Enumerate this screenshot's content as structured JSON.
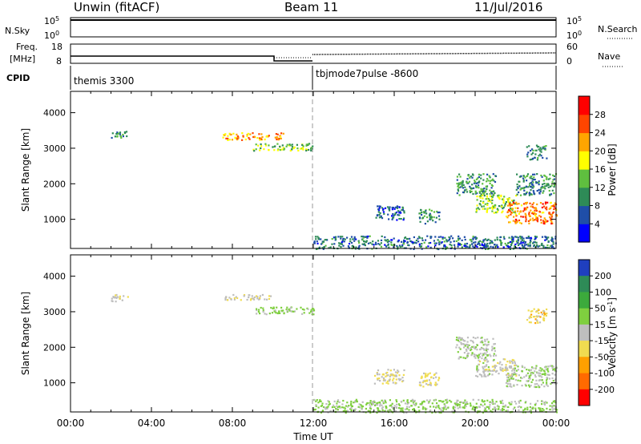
{
  "header": {
    "title": "Unwin (fitACF)",
    "beam": "Beam 11",
    "date": "11/Jul/2016"
  },
  "summary": {
    "nsky_label": "N.Sky",
    "nsky_ticks": [
      "10^5",
      "10^0"
    ],
    "nsearch_label": "N.Search",
    "nsearch_ticks": [
      "10^5",
      "10^0"
    ],
    "freq_label": "Freq.",
    "freq_unit": "[MHz]",
    "freq_ticks": [
      "18",
      "8"
    ],
    "nave_label": "Nave",
    "nave_ticks": [
      "60",
      "0"
    ],
    "cpid_label": "CPID",
    "cpid_modes": [
      {
        "name": "themis 3300",
        "start_hour": 0
      },
      {
        "name": "tbjmode7pulse -8600",
        "start_hour": 12
      }
    ]
  },
  "chart_data": [
    {
      "type": "heatmap",
      "title": "",
      "quantity": "Power",
      "ylabel": "Slant Range [km]",
      "xlabel": "",
      "xlim": [
        0,
        24
      ],
      "ylim": [
        180,
        4600
      ],
      "yticks": [
        "1000",
        "2000",
        "3000",
        "4000"
      ],
      "colorbar": {
        "label": "Power [dB]",
        "ticks": [
          "4",
          "8",
          "12",
          "16",
          "20",
          "24",
          "28"
        ],
        "range": [
          0,
          32
        ],
        "colors": [
          "#0000ff",
          "#1f4ea8",
          "#2e8b57",
          "#5fbf3f",
          "#ffff00",
          "#ffa500",
          "#ff4500",
          "#ff0000"
        ]
      },
      "regions": [
        {
          "x": [
            2.0,
            2.8
          ],
          "y": [
            3300,
            3500
          ],
          "value": 10
        },
        {
          "x": [
            7.5,
            10.5
          ],
          "y": [
            3250,
            3450
          ],
          "value": 22
        },
        {
          "x": [
            9.0,
            12.0
          ],
          "y": [
            2950,
            3150
          ],
          "value": 14
        },
        {
          "x": [
            12.0,
            24.0
          ],
          "y": [
            180,
            550
          ],
          "value": 8
        },
        {
          "x": [
            15.0,
            16.5
          ],
          "y": [
            1000,
            1400
          ],
          "value": 7
        },
        {
          "x": [
            17.2,
            18.2
          ],
          "y": [
            900,
            1300
          ],
          "value": 10
        },
        {
          "x": [
            19.0,
            21.0
          ],
          "y": [
            1700,
            2300
          ],
          "value": 11
        },
        {
          "x": [
            20.0,
            22.0
          ],
          "y": [
            1200,
            1700
          ],
          "value": 15
        },
        {
          "x": [
            21.5,
            24.0
          ],
          "y": [
            900,
            1500
          ],
          "value": 24
        },
        {
          "x": [
            22.0,
            24.0
          ],
          "y": [
            1700,
            2300
          ],
          "value": 10
        },
        {
          "x": [
            22.5,
            23.5
          ],
          "y": [
            2700,
            3100
          ],
          "value": 9
        }
      ]
    },
    {
      "type": "heatmap",
      "title": "",
      "quantity": "Velocity",
      "ylabel": "Slant Range [km]",
      "xlabel": "Time UT",
      "xlim": [
        0,
        24
      ],
      "ylim": [
        180,
        4600
      ],
      "xticks": [
        "00:00",
        "04:00",
        "08:00",
        "12:00",
        "16:00",
        "20:00",
        "00:00"
      ],
      "yticks": [
        "1000",
        "2000",
        "3000",
        "4000"
      ],
      "colorbar": {
        "label": "Velocity [m s^-1]",
        "ticks": [
          "200",
          "100",
          "50",
          "15",
          "-15",
          "-50",
          "-100",
          "-200"
        ],
        "range": [
          250,
          -250
        ],
        "colors": [
          "#1f3fbf",
          "#2e8b57",
          "#3caa3c",
          "#7fcf3f",
          "#bebebe",
          "#f0dc50",
          "#ffa000",
          "#ff6a00",
          "#ff0000"
        ]
      },
      "regions": [
        {
          "x": [
            2.0,
            2.8
          ],
          "y": [
            3300,
            3500
          ],
          "value": 0
        },
        {
          "x": [
            7.5,
            10.0
          ],
          "y": [
            3350,
            3500
          ],
          "value": -30
        },
        {
          "x": [
            9.0,
            12.0
          ],
          "y": [
            2950,
            3150
          ],
          "value": 40
        },
        {
          "x": [
            12.0,
            24.0
          ],
          "y": [
            180,
            550
          ],
          "value": 40
        },
        {
          "x": [
            15.0,
            16.5
          ],
          "y": [
            1000,
            1400
          ],
          "value": -20
        },
        {
          "x": [
            17.2,
            18.2
          ],
          "y": [
            900,
            1300
          ],
          "value": -40
        },
        {
          "x": [
            19.0,
            21.0
          ],
          "y": [
            1700,
            2300
          ],
          "value": 10
        },
        {
          "x": [
            20.0,
            22.0
          ],
          "y": [
            1200,
            1700
          ],
          "value": 0
        },
        {
          "x": [
            21.5,
            24.0
          ],
          "y": [
            900,
            1500
          ],
          "value": 20
        },
        {
          "x": [
            22.5,
            23.5
          ],
          "y": [
            2700,
            3100
          ],
          "value": -60
        }
      ]
    }
  ]
}
